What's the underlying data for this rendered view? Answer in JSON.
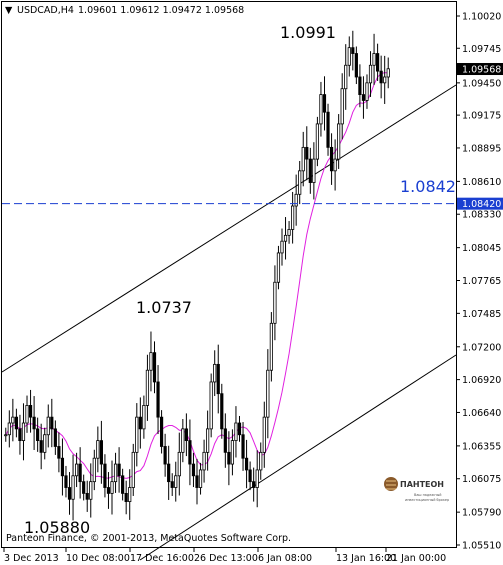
{
  "header": {
    "symbol_timeframe": "USDCAD,H4",
    "ohlc": "1.09601 1.09612 1.09472 1.09568"
  },
  "footer": {
    "copyright": "Panteon Finance, © 2001-2013, MetaQuotes Software Corp."
  },
  "logo": {
    "name": "ПАНТЕОН",
    "tagline_1": "Ваш надежный",
    "tagline_2": "инвестиционный брокер"
  },
  "colors": {
    "candles": "#000000",
    "moving_average": "#e020e0",
    "level_line": "#1a3fd1",
    "channel": "#000000",
    "current_price_bg": "#000000"
  },
  "chart_data": {
    "type": "candlestick",
    "y_ticks": [
      "1.10020",
      "1.09745",
      "1.09450",
      "1.09175",
      "1.08895",
      "1.08610",
      "1.08330",
      "1.08045",
      "1.07765",
      "1.07485",
      "1.07200",
      "1.06920",
      "1.06640",
      "1.06355",
      "1.06075",
      "1.05790",
      "1.05510"
    ],
    "ylim": [
      1.0551,
      1.1002
    ],
    "x_ticks": [
      "3 Dec 2013",
      "10 Dec 08:00",
      "17 Dec 16:00",
      "26 Dec 13:00",
      "6 Jan 08:00",
      "13 Jan 16:00",
      "21 Jan 00:00"
    ],
    "current_price": "1.09568",
    "level_label": "1.08420",
    "level_value": 1.0842,
    "annotations": {
      "high": "1.0991",
      "mid_high": "1.0737",
      "low": "1.05880",
      "level": "1.0842"
    },
    "close_series": [
      1.0645,
      1.0655,
      1.066,
      1.065,
      1.064,
      1.0655,
      1.067,
      1.066,
      1.065,
      1.064,
      1.063,
      1.0645,
      1.066,
      1.065,
      1.0635,
      1.0625,
      1.061,
      1.06,
      1.059,
      1.061,
      1.062,
      1.0605,
      1.0595,
      1.059,
      1.0605,
      1.0625,
      1.064,
      1.062,
      1.06,
      1.0595,
      1.0605,
      1.062,
      1.061,
      1.0595,
      1.0588,
      1.06,
      1.063,
      1.066,
      1.065,
      1.067,
      1.07,
      1.0715,
      1.069,
      1.066,
      1.0635,
      1.062,
      1.0605,
      1.06,
      1.061,
      1.063,
      1.065,
      1.064,
      1.062,
      1.061,
      1.06,
      1.0615,
      1.063,
      1.065,
      1.069,
      1.0705,
      1.068,
      1.065,
      1.063,
      1.062,
      1.064,
      1.0655,
      1.0645,
      1.0625,
      1.0615,
      1.0605,
      1.06,
      1.0615,
      1.063,
      1.066,
      1.07,
      1.074,
      1.0775,
      1.08,
      1.081,
      1.0815,
      1.082,
      1.084,
      1.085,
      1.087,
      1.089,
      1.088,
      1.086,
      1.088,
      1.091,
      1.0935,
      1.092,
      1.089,
      1.087,
      1.088,
      1.091,
      1.094,
      1.096,
      1.0975,
      1.097,
      1.095,
      1.0935,
      1.093,
      1.0945,
      1.096,
      1.097,
      1.0955,
      1.0945,
      1.095,
      1.0957
    ]
  }
}
